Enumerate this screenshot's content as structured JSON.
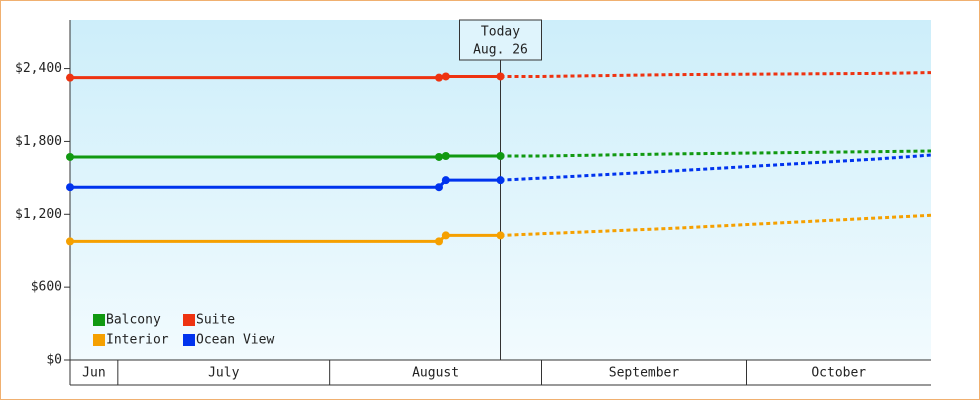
{
  "chart_data": {
    "type": "line",
    "xlim": [
      "06-24",
      "10-28"
    ],
    "xticks": [
      {
        "value": "06-01",
        "label": "Jun"
      },
      {
        "value": "07-01",
        "label": "July"
      },
      {
        "value": "08-01",
        "label": "August"
      },
      {
        "value": "09-01",
        "label": "September"
      },
      {
        "value": "10-01",
        "label": "October"
      }
    ],
    "ylim": [
      0,
      2800
    ],
    "yticks": [
      {
        "value": 0,
        "label": "$0"
      },
      {
        "value": 600,
        "label": "$600"
      },
      {
        "value": 1200,
        "label": "$1,200"
      },
      {
        "value": 1800,
        "label": "$1,800"
      },
      {
        "value": 2400,
        "label": "$2,400"
      }
    ],
    "today": {
      "x": "08-26",
      "label": [
        "Today",
        "Aug. 26"
      ]
    },
    "series": [
      {
        "name": "Balcony",
        "color": "#119911",
        "x": [
          "06-24",
          "08-17",
          "08-18",
          "08-26"
        ],
        "values": [
          1672,
          1672,
          1680,
          1680
        ],
        "forecast_x": [
          "08-26",
          "09-01",
          "09-20",
          "10-28"
        ],
        "forecast_values": [
          1680,
          1680,
          1697,
          1721
        ]
      },
      {
        "name": "Suite",
        "color": "#ee3311",
        "x": [
          "06-24",
          "08-17",
          "08-18",
          "08-26"
        ],
        "values": [
          2325,
          2325,
          2335,
          2335
        ],
        "forecast_x": [
          "08-26",
          "09-01",
          "09-20",
          "10-20",
          "10-28"
        ],
        "forecast_values": [
          2335,
          2335,
          2350,
          2360,
          2367
        ]
      },
      {
        "name": "Interior",
        "color": "#f5a000",
        "x": [
          "06-24",
          "08-17",
          "08-18",
          "08-26"
        ],
        "values": [
          977,
          977,
          1026,
          1026
        ],
        "forecast_x": [
          "08-26",
          "09-20",
          "10-28"
        ],
        "forecast_values": [
          1026,
          1084,
          1192
        ]
      },
      {
        "name": "Ocean View",
        "color": "#0033ee",
        "x": [
          "06-24",
          "08-17",
          "08-18",
          "08-26"
        ],
        "values": [
          1423,
          1423,
          1481,
          1481
        ],
        "forecast_x": [
          "08-26",
          "09-01",
          "09-20",
          "10-20",
          "10-28"
        ],
        "forecast_values": [
          1481,
          1498,
          1556,
          1655,
          1688
        ]
      }
    ]
  }
}
